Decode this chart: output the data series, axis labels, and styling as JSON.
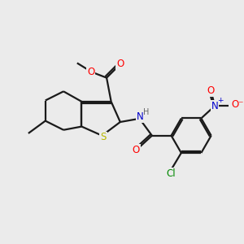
{
  "bg_color": "#ebebeb",
  "bond_color": "#1a1a1a",
  "bond_width": 1.6,
  "atom_colors": {
    "S": "#b8b800",
    "O": "#ff0000",
    "N": "#0000cc",
    "Cl": "#008800",
    "H": "#666666",
    "C": "#1a1a1a"
  },
  "font_size": 8.5,
  "fig_width": 3.0,
  "fig_height": 3.0,
  "dpi": 100
}
